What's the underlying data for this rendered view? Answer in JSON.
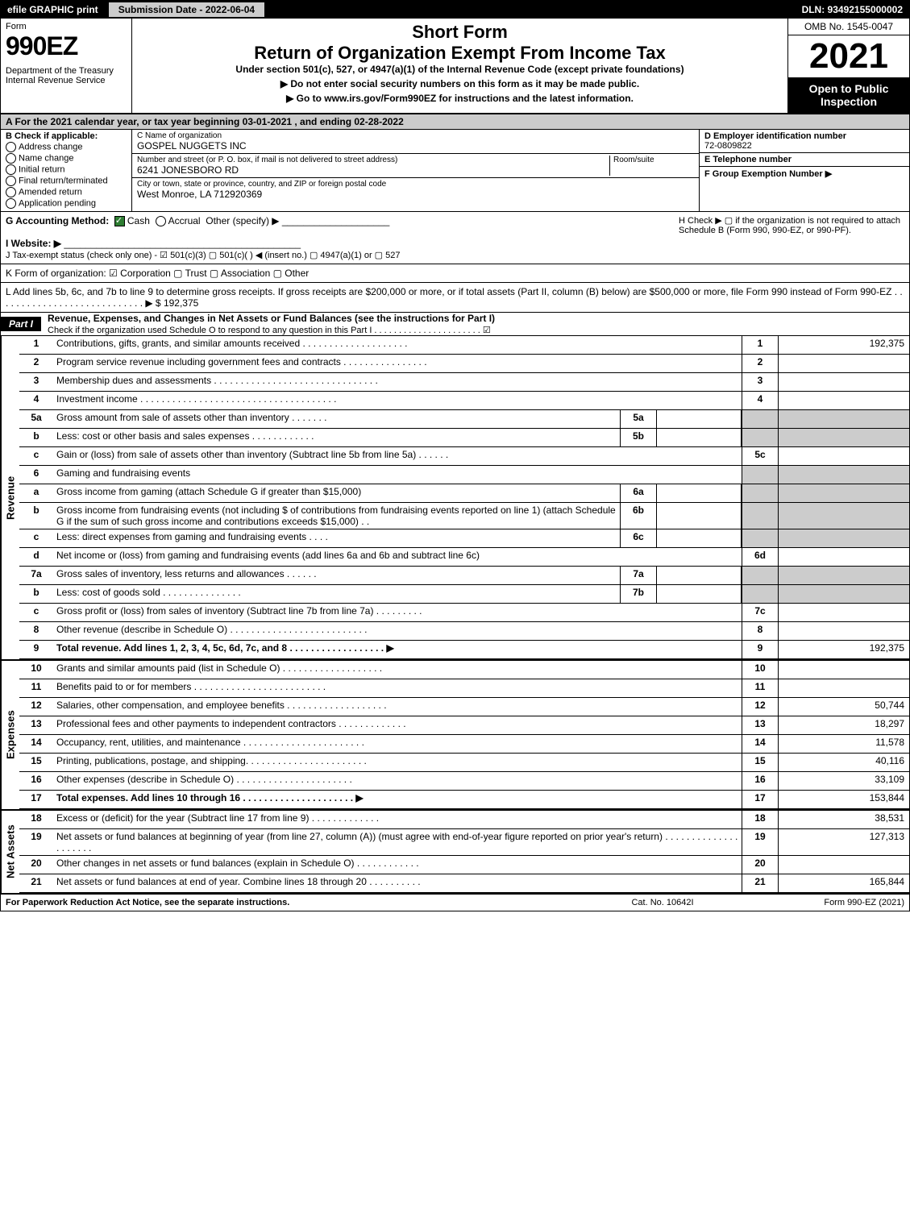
{
  "topbar": {
    "efile": "efile GRAPHIC print",
    "submission": "Submission Date - 2022-06-04",
    "dln": "DLN: 93492155000002"
  },
  "header": {
    "form_label": "Form",
    "form_no": "990EZ",
    "dept": "Department of the Treasury\nInternal Revenue Service",
    "short_form": "Short Form",
    "title": "Return of Organization Exempt From Income Tax",
    "under": "Under section 501(c), 527, or 4947(a)(1) of the Internal Revenue Code (except private foundations)",
    "no_ssn": "▶ Do not enter social security numbers on this form as it may be made public.",
    "goto": "▶ Go to www.irs.gov/Form990EZ for instructions and the latest information.",
    "omb": "OMB No. 1545-0047",
    "year": "2021",
    "open_to": "Open to Public Inspection"
  },
  "A": {
    "text": "A  For the 2021 calendar year, or tax year beginning 03-01-2021 , and ending 02-28-2022"
  },
  "B": {
    "label": "B  Check if applicable:",
    "opts": [
      "Address change",
      "Name change",
      "Initial return",
      "Final return/terminated",
      "Amended return",
      "Application pending"
    ]
  },
  "C": {
    "name_label": "C Name of organization",
    "name": "GOSPEL NUGGETS INC",
    "addr_label": "Number and street (or P. O. box, if mail is not delivered to street address)",
    "room_label": "Room/suite",
    "addr": "6241 JONESBORO RD",
    "city_label": "City or town, state or province, country, and ZIP or foreign postal code",
    "city": "West Monroe, LA  712920369"
  },
  "D": {
    "label": "D Employer identification number",
    "value": "72-0809822"
  },
  "E": {
    "label": "E Telephone number",
    "value": ""
  },
  "F": {
    "label": "F Group Exemption Number  ▶",
    "value": ""
  },
  "G": {
    "label": "G Accounting Method:",
    "cash": "Cash",
    "accrual": "Accrual",
    "other": "Other (specify) ▶"
  },
  "H": {
    "text": "H  Check ▶  ▢  if the organization is not required to attach Schedule B (Form 990, 990-EZ, or 990-PF)."
  },
  "I": {
    "label": "I Website: ▶",
    "value": ""
  },
  "J": {
    "text": "J Tax-exempt status (check only one) - ☑ 501(c)(3)  ▢ 501(c)(   ) ◀ (insert no.)  ▢ 4947(a)(1) or  ▢ 527"
  },
  "K": {
    "text": "K Form of organization:  ☑ Corporation   ▢ Trust   ▢ Association   ▢ Other"
  },
  "L": {
    "text": "L Add lines 5b, 6c, and 7b to line 9 to determine gross receipts. If gross receipts are $200,000 or more, or if total assets (Part II, column (B) below) are $500,000 or more, file Form 990 instead of Form 990-EZ  .  .  .  .  .  .  .  .  .  .  .  .  .  .  .  .  .  .  .  .  .  .  .  .  .  .  .  . ▶ $ 192,375"
  },
  "partI": {
    "label": "Part I",
    "title": "Revenue, Expenses, and Changes in Net Assets or Fund Balances (see the instructions for Part I)",
    "sub": "Check if the organization used Schedule O to respond to any question in this Part I . . . . . . . . . . . . . . . . . . . . . .  ☑"
  },
  "sections": {
    "revenue_label": "Revenue",
    "expenses_label": "Expenses",
    "netassets_label": "Net Assets"
  },
  "lines": [
    {
      "n": "1",
      "d": "Contributions, gifts, grants, and similar amounts received  .  .  .  .  .  .  .  .  .  .  .  .  .  .  .  .  .  .  .  .",
      "rn": "1",
      "rv": "192,375"
    },
    {
      "n": "2",
      "d": "Program service revenue including government fees and contracts  .  .  .  .  .  .  .  .  .  .  .  .  .  .  .  .",
      "rn": "2",
      "rv": ""
    },
    {
      "n": "3",
      "d": "Membership dues and assessments  .  .  .  .  .  .  .  .  .  .  .  .  .  .  .  .  .  .  .  .  .  .  .  .  .  .  .  .  .  .  .",
      "rn": "3",
      "rv": ""
    },
    {
      "n": "4",
      "d": "Investment income  .  .  .  .  .  .  .  .  .  .  .  .  .  .  .  .  .  .  .  .  .  .  .  .  .  .  .  .  .  .  .  .  .  .  .  .  .",
      "rn": "4",
      "rv": ""
    },
    {
      "n": "5a",
      "d": "Gross amount from sale of assets other than inventory  .  .  .  .  .  .  .",
      "sub": "5a",
      "subval": "",
      "rn": "",
      "rv": "",
      "shade": true
    },
    {
      "n": "b",
      "d": "Less: cost or other basis and sales expenses  .  .  .  .  .  .  .  .  .  .  .  .",
      "sub": "5b",
      "subval": "",
      "rn": "",
      "rv": "",
      "shade": true
    },
    {
      "n": "c",
      "d": "Gain or (loss) from sale of assets other than inventory (Subtract line 5b from line 5a)  .  .  .  .  .  .",
      "rn": "5c",
      "rv": ""
    },
    {
      "n": "6",
      "d": "Gaming and fundraising events",
      "rn": "",
      "rv": "",
      "shade": true
    },
    {
      "n": "a",
      "d": "Gross income from gaming (attach Schedule G if greater than $15,000)",
      "sub": "6a",
      "subval": "",
      "rn": "",
      "rv": "",
      "shade": true
    },
    {
      "n": "b",
      "d": "Gross income from fundraising events (not including $                       of contributions from fundraising events reported on line 1) (attach Schedule G if the sum of such gross income and contributions exceeds $15,000)   .   .",
      "sub": "6b",
      "subval": "",
      "rn": "",
      "rv": "",
      "shade": true
    },
    {
      "n": "c",
      "d": "Less: direct expenses from gaming and fundraising events   .  .  .  .",
      "sub": "6c",
      "subval": "",
      "rn": "",
      "rv": "",
      "shade": true
    },
    {
      "n": "d",
      "d": "Net income or (loss) from gaming and fundraising events (add lines 6a and 6b and subtract line 6c)",
      "rn": "6d",
      "rv": ""
    },
    {
      "n": "7a",
      "d": "Gross sales of inventory, less returns and allowances  .  .  .  .  .  .",
      "sub": "7a",
      "subval": "",
      "rn": "",
      "rv": "",
      "shade": true
    },
    {
      "n": "b",
      "d": "Less: cost of goods sold        .  .  .  .  .  .  .  .  .  .  .  .  .  .  .",
      "sub": "7b",
      "subval": "",
      "rn": "",
      "rv": "",
      "shade": true
    },
    {
      "n": "c",
      "d": "Gross profit or (loss) from sales of inventory (Subtract line 7b from line 7a)  .  .  .  .  .  .  .  .  .",
      "rn": "7c",
      "rv": ""
    },
    {
      "n": "8",
      "d": "Other revenue (describe in Schedule O)  .  .  .  .  .  .  .  .  .  .  .  .  .  .  .  .  .  .  .  .  .  .  .  .  .  .",
      "rn": "8",
      "rv": ""
    },
    {
      "n": "9",
      "d": "Total revenue. Add lines 1, 2, 3, 4, 5c, 6d, 7c, and 8  .  .  .  .  .  .  .  .  .  .  .  .  .  .  .  .  .  . ▶",
      "rn": "9",
      "rv": "192,375",
      "bold": true
    }
  ],
  "exp_lines": [
    {
      "n": "10",
      "d": "Grants and similar amounts paid (list in Schedule O)  .  .  .  .  .  .  .  .  .  .  .  .  .  .  .  .  .  .  .",
      "rn": "10",
      "rv": ""
    },
    {
      "n": "11",
      "d": "Benefits paid to or for members       .  .  .  .  .  .  .  .  .  .  .  .  .  .  .  .  .  .  .  .  .  .  .  .  .",
      "rn": "11",
      "rv": ""
    },
    {
      "n": "12",
      "d": "Salaries, other compensation, and employee benefits  .  .  .  .  .  .  .  .  .  .  .  .  .  .  .  .  .  .  .",
      "rn": "12",
      "rv": "50,744"
    },
    {
      "n": "13",
      "d": "Professional fees and other payments to independent contractors  .  .  .  .  .  .  .  .  .  .  .  .  .",
      "rn": "13",
      "rv": "18,297"
    },
    {
      "n": "14",
      "d": "Occupancy, rent, utilities, and maintenance  .  .  .  .  .  .  .  .  .  .  .  .  .  .  .  .  .  .  .  .  .  .  .",
      "rn": "14",
      "rv": "11,578"
    },
    {
      "n": "15",
      "d": "Printing, publications, postage, and shipping.   .  .  .  .  .  .  .  .  .  .  .  .  .  .  .  .  .  .  .  .  .  .",
      "rn": "15",
      "rv": "40,116"
    },
    {
      "n": "16",
      "d": "Other expenses (describe in Schedule O)     .  .  .  .  .  .  .  .  .  .  .  .  .  .  .  .  .  .  .  .  .  .",
      "rn": "16",
      "rv": "33,109"
    },
    {
      "n": "17",
      "d": "Total expenses. Add lines 10 through 16     .  .  .  .  .  .  .  .  .  .  .  .  .  .  .  .  .  .  .  .  . ▶",
      "rn": "17",
      "rv": "153,844",
      "bold": true
    }
  ],
  "na_lines": [
    {
      "n": "18",
      "d": "Excess or (deficit) for the year (Subtract line 17 from line 9)       .  .  .  .  .  .  .  .  .  .  .  .  .",
      "rn": "18",
      "rv": "38,531"
    },
    {
      "n": "19",
      "d": "Net assets or fund balances at beginning of year (from line 27, column (A)) (must agree with end-of-year figure reported on prior year's return)  .  .  .  .  .  .  .  .  .  .  .  .  .  .  .  .  .  .  .  .  .",
      "rn": "19",
      "rv": "127,313"
    },
    {
      "n": "20",
      "d": "Other changes in net assets or fund balances (explain in Schedule O)  .  .  .  .  .  .  .  .  .  .  .  .",
      "rn": "20",
      "rv": ""
    },
    {
      "n": "21",
      "d": "Net assets or fund balances at end of year. Combine lines 18 through 20  .  .  .  .  .  .  .  .  .  .",
      "rn": "21",
      "rv": "165,844"
    }
  ],
  "footer": {
    "f1": "For Paperwork Reduction Act Notice, see the separate instructions.",
    "f2": "Cat. No. 10642I",
    "f3": "Form 990-EZ (2021)"
  },
  "colors": {
    "black": "#000000",
    "white": "#ffffff",
    "gray": "#cccccc",
    "link": "#0000ee",
    "check_green": "#2e7d32"
  }
}
